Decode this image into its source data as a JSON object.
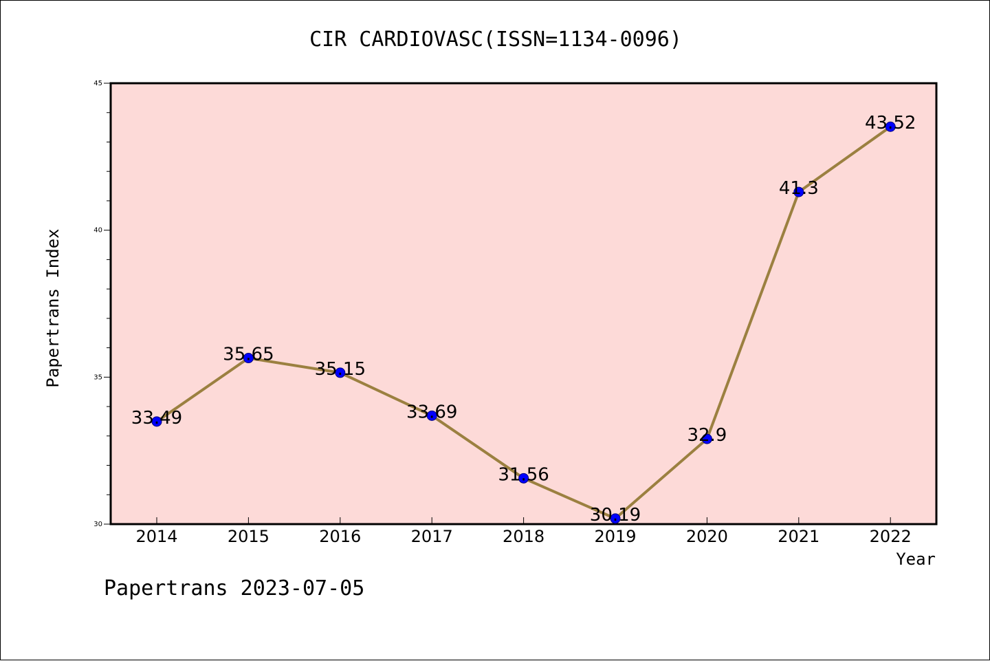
{
  "chart_data": {
    "type": "line",
    "title": "CIR CARDIOVASC(ISSN=1134-0096)",
    "xlabel": "Year",
    "ylabel": "Papertrans Index",
    "categories": [
      "2014",
      "2015",
      "2016",
      "2017",
      "2018",
      "2019",
      "2020",
      "2021",
      "2022"
    ],
    "values": [
      33.49,
      35.65,
      35.15,
      33.69,
      31.56,
      30.19,
      32.9,
      41.3,
      43.52
    ],
    "value_labels": [
      "33.49",
      "35.65",
      "35.15",
      "33.69",
      "31.56",
      "30.19",
      "32.9",
      "41.3",
      "43.52"
    ],
    "ylim": [
      30,
      45
    ],
    "yticks": [
      "30",
      "35",
      "40",
      "45"
    ],
    "grid": false,
    "legend": "none",
    "footer": "Papertrans 2023-07-05"
  },
  "colors": {
    "plot_background": "#fddad8",
    "line": "#9b8040",
    "marker_fill": "#0000ff",
    "marker_stroke": "#000080",
    "axis": "#000000"
  }
}
